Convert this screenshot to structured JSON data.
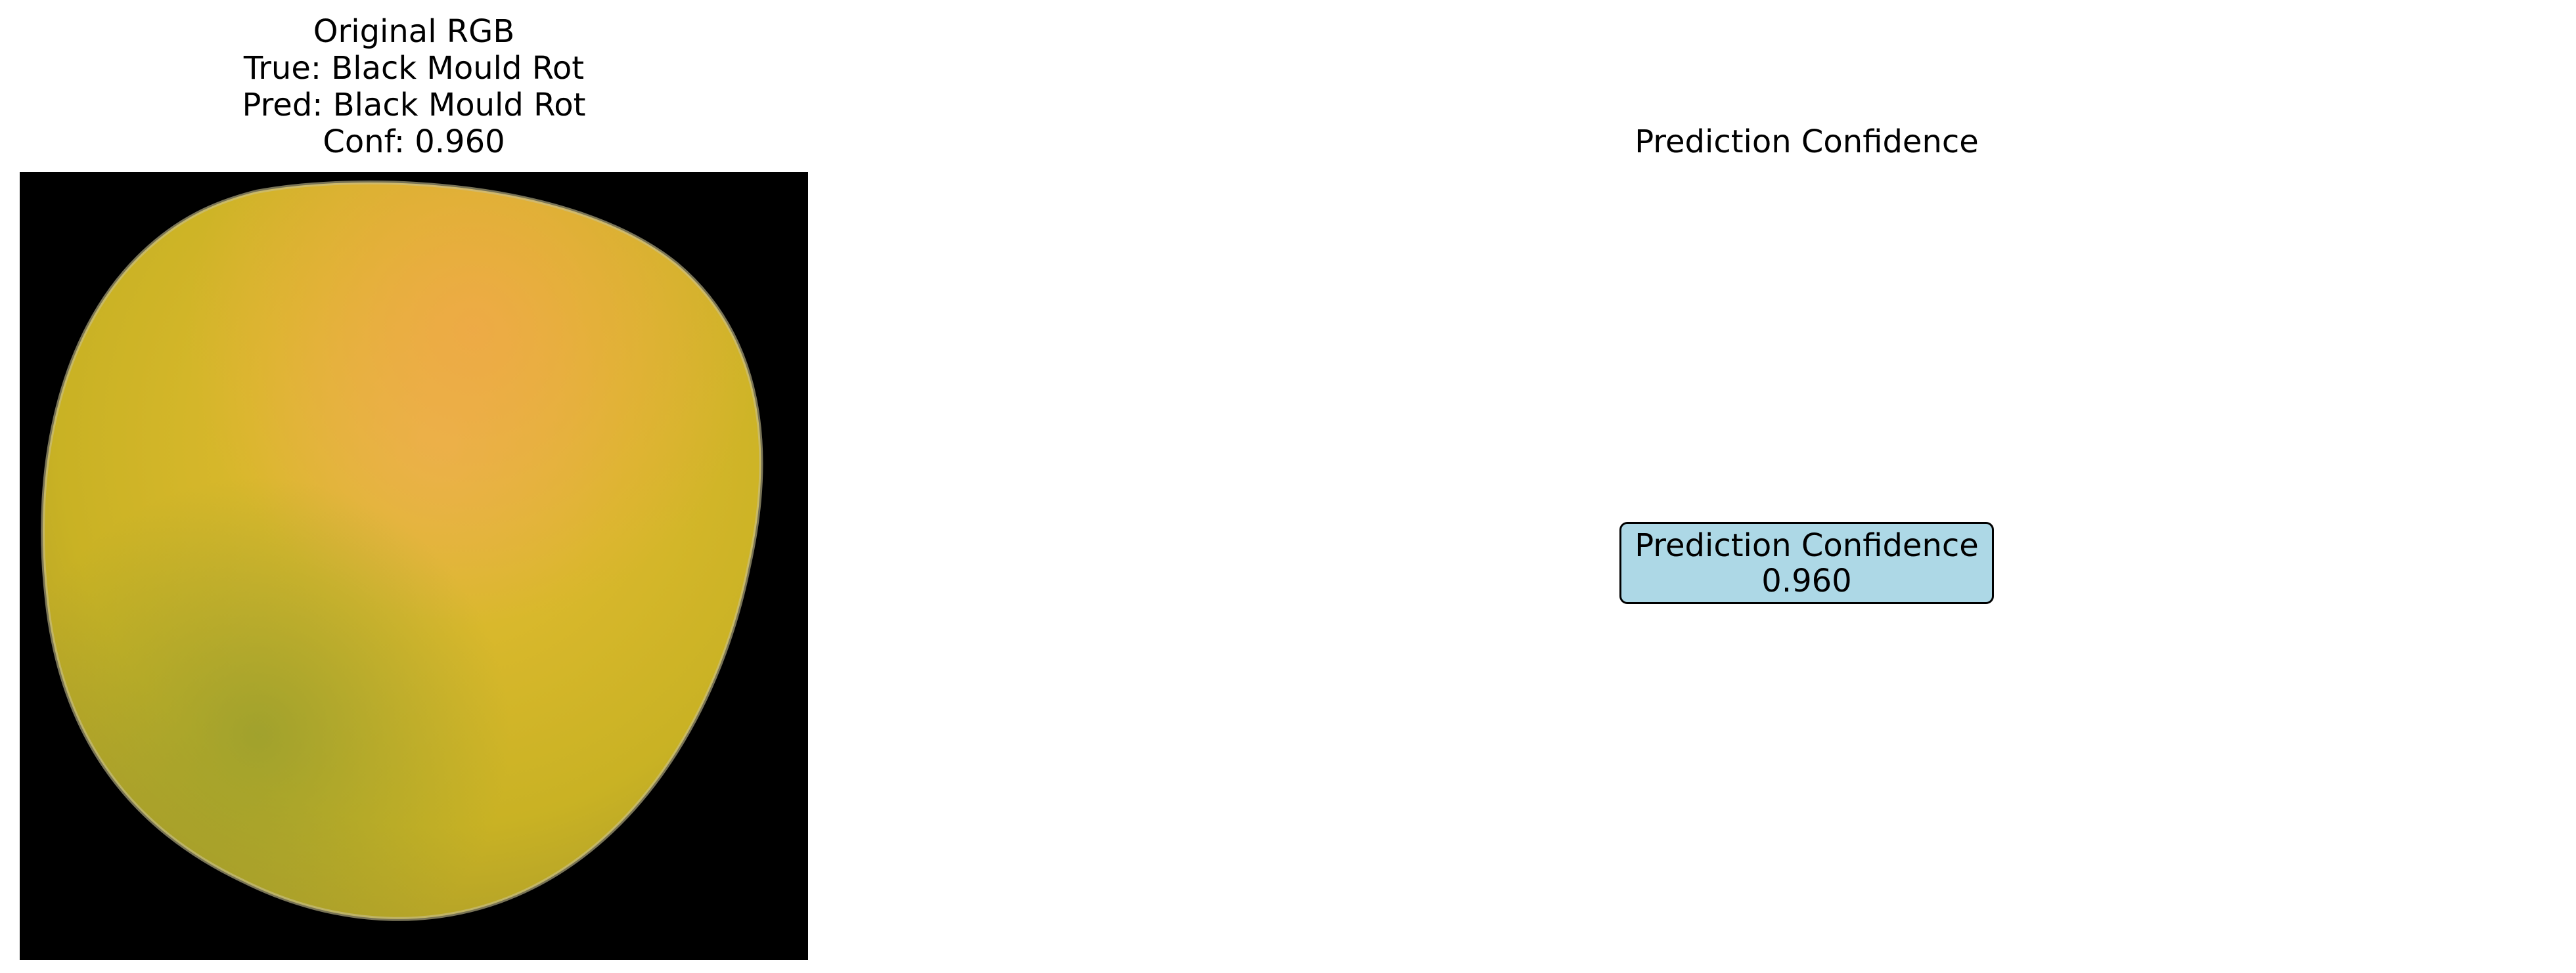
{
  "left_panel": {
    "title_line1": "Original RGB",
    "title_line2": "True: Black Mould Rot",
    "title_line3": "Pred: Black Mould Rot",
    "title_line4": "Conf: 0.960",
    "image_subject": "mango-fruit"
  },
  "right_panel": {
    "title": "Prediction Confidence",
    "box_label": "Prediction Confidence",
    "box_value": "0.960",
    "box_color": "#add8e6"
  },
  "colors": {
    "image_background": "#000000",
    "fruit_yellow": "#d6b82a",
    "fruit_orange": "#e0a040"
  }
}
